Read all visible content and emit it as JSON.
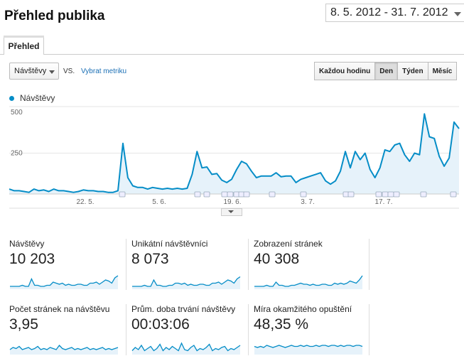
{
  "header": {
    "title": "Přehled publika",
    "date_range": "8. 5. 2012 - 31. 7. 2012"
  },
  "tabs": [
    {
      "label": "Přehled"
    }
  ],
  "controls": {
    "metric_select": "Návštěvy",
    "vs_label": "VS.",
    "select_metric_link": "Vybrat metriku",
    "granularity": [
      {
        "label": "Každou hodinu",
        "active": false
      },
      {
        "label": "Den",
        "active": true
      },
      {
        "label": "Týden",
        "active": false
      },
      {
        "label": "Měsíc",
        "active": false
      }
    ]
  },
  "legend": {
    "series": "Návštěvy",
    "color": "#058dc7"
  },
  "chart_data": {
    "type": "area",
    "series": [
      {
        "name": "Návštěvy",
        "values": [
          30,
          20,
          20,
          15,
          10,
          30,
          20,
          25,
          15,
          30,
          20,
          20,
          15,
          10,
          15,
          25,
          20,
          20,
          15,
          15,
          10,
          10,
          20,
          310,
          100,
          50,
          40,
          40,
          30,
          40,
          35,
          30,
          35,
          30,
          35,
          30,
          35,
          120,
          260,
          160,
          165,
          120,
          125,
          85,
          70,
          90,
          150,
          200,
          185,
          140,
          100,
          110,
          110,
          110,
          130,
          105,
          110,
          110,
          70,
          90,
          100,
          110,
          120,
          130,
          80,
          60,
          80,
          140,
          260,
          160,
          260,
          210,
          250,
          150,
          100,
          160,
          270,
          260,
          300,
          310,
          240,
          200,
          250,
          240,
          490,
          350,
          340,
          230,
          170,
          220,
          440,
          400
        ]
      }
    ],
    "xlabel": "",
    "ylabel": "",
    "ylim": [
      0,
      500
    ],
    "yticks": [
      "500",
      "250"
    ],
    "xtick_labels": [
      "22. 5.",
      "5. 6.",
      "19. 6.",
      "3. 7.",
      "17. 7."
    ],
    "grid": true
  },
  "metrics": [
    {
      "label": "Návštěvy",
      "value": "10 203",
      "spark": [
        2,
        2,
        2,
        2,
        3,
        2,
        2,
        9,
        3,
        3,
        2,
        2,
        3,
        3,
        6,
        5,
        4,
        5,
        3,
        4,
        3,
        3,
        4,
        4,
        3,
        3,
        5,
        5,
        6,
        4,
        6,
        8,
        7,
        5,
        10,
        12
      ]
    },
    {
      "label": "Unikátní návštěvníci",
      "value": "8 073",
      "spark": [
        2,
        2,
        2,
        2,
        3,
        2,
        2,
        8,
        3,
        3,
        2,
        2,
        3,
        3,
        5,
        5,
        4,
        5,
        3,
        4,
        3,
        3,
        4,
        4,
        3,
        3,
        5,
        5,
        6,
        4,
        6,
        8,
        7,
        5,
        9,
        11
      ]
    },
    {
      "label": "Zobrazení stránek",
      "value": "40 308",
      "spark": [
        2,
        2,
        2,
        2,
        3,
        2,
        2,
        6,
        3,
        3,
        2,
        2,
        3,
        3,
        4,
        5,
        4,
        4,
        3,
        4,
        3,
        3,
        4,
        4,
        3,
        3,
        5,
        4,
        5,
        4,
        5,
        7,
        6,
        5,
        8,
        12
      ]
    },
    {
      "label": "Počet stránek na návštěvu",
      "value": "3,95",
      "spark": [
        4,
        6,
        5,
        7,
        4,
        5,
        6,
        4,
        5,
        7,
        4,
        5,
        4,
        6,
        5,
        4,
        8,
        5,
        4,
        5,
        6,
        4,
        5,
        4,
        5,
        6,
        4,
        5,
        4,
        5,
        6,
        4,
        5,
        4,
        5,
        6
      ]
    },
    {
      "label": "Prům. doba trvání návštěvy",
      "value": "00:03:06",
      "spark": [
        3,
        6,
        4,
        8,
        3,
        5,
        7,
        3,
        5,
        9,
        3,
        6,
        4,
        7,
        5,
        3,
        10,
        4,
        3,
        6,
        8,
        3,
        5,
        4,
        6,
        9,
        3,
        5,
        4,
        6,
        7,
        3,
        5,
        4,
        6,
        8
      ]
    },
    {
      "label": "Míra okamžitého opuštění",
      "value": "48,35 %",
      "spark": [
        7,
        6,
        7,
        6,
        8,
        7,
        6,
        7,
        8,
        7,
        6,
        7,
        8,
        7,
        7,
        8,
        7,
        8,
        7,
        7,
        8,
        7,
        8,
        8,
        7,
        8,
        8,
        7,
        8,
        7,
        8,
        8,
        7,
        8,
        8,
        7
      ]
    }
  ]
}
